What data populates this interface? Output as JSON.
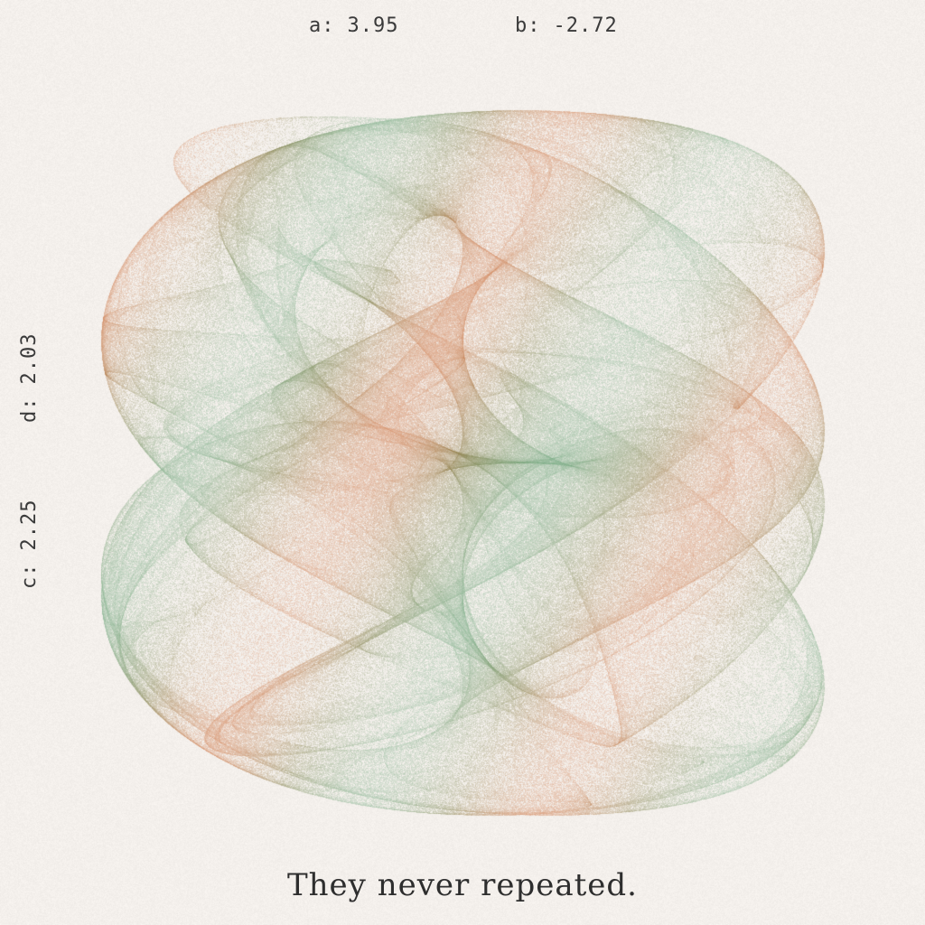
{
  "params": {
    "a": {
      "label": "a:",
      "value": "3.95"
    },
    "b": {
      "label": "b:",
      "value": "-2.72"
    },
    "c": {
      "label": "c:",
      "value": "2.25"
    },
    "d": {
      "label": "d:",
      "value": "2.03"
    }
  },
  "caption": "They never repeated.",
  "colors": {
    "background": "#f4f0ec",
    "orange": "#c8642d",
    "green": "#5a9a6a",
    "olive": "#6b6a2a",
    "text": "#2e2e2e"
  }
}
